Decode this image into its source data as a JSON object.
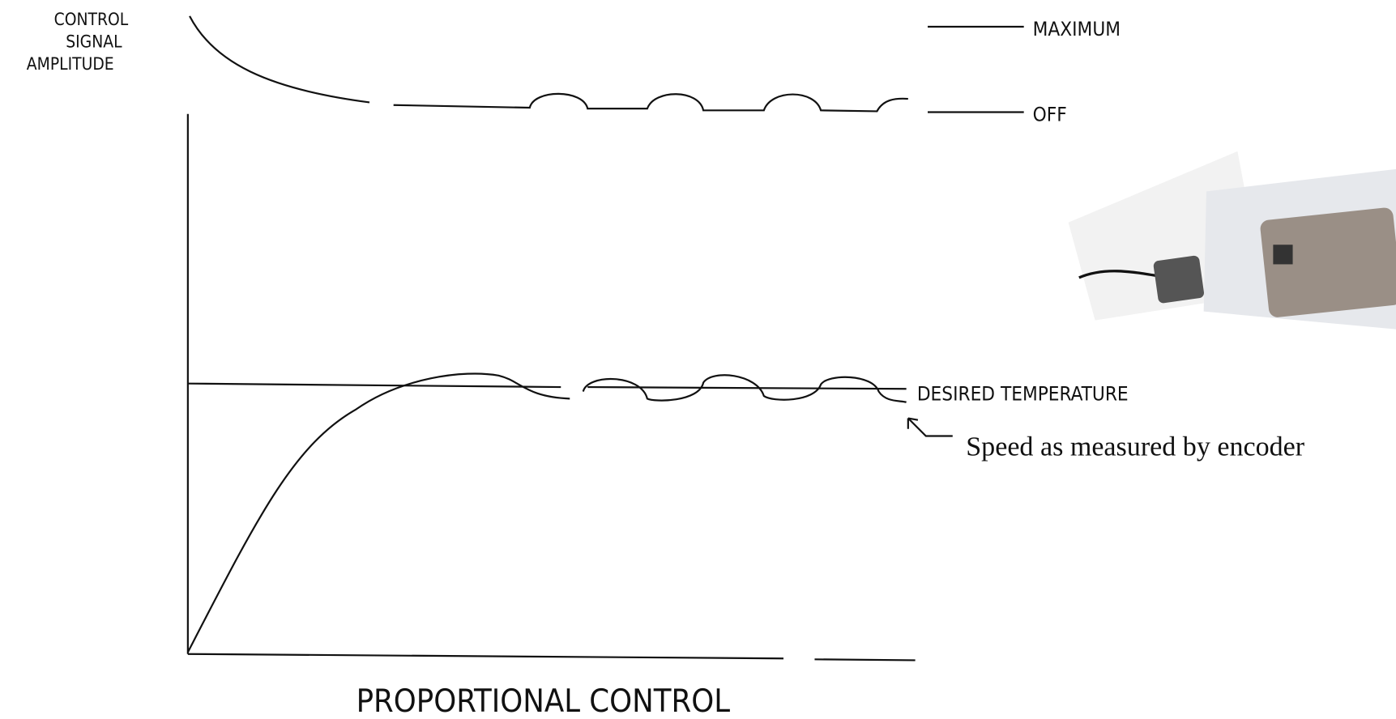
{
  "axis_label": [
    "CONTROL",
    "SIGNAL",
    "AMPLITUDE"
  ],
  "levels": {
    "maximum": "MAXIMUM",
    "off": "OFF",
    "setpoint": "DESIRED TEMPERATURE"
  },
  "annotation": "Speed as measured by encoder",
  "title": "PROPORTIONAL CONTROL"
}
